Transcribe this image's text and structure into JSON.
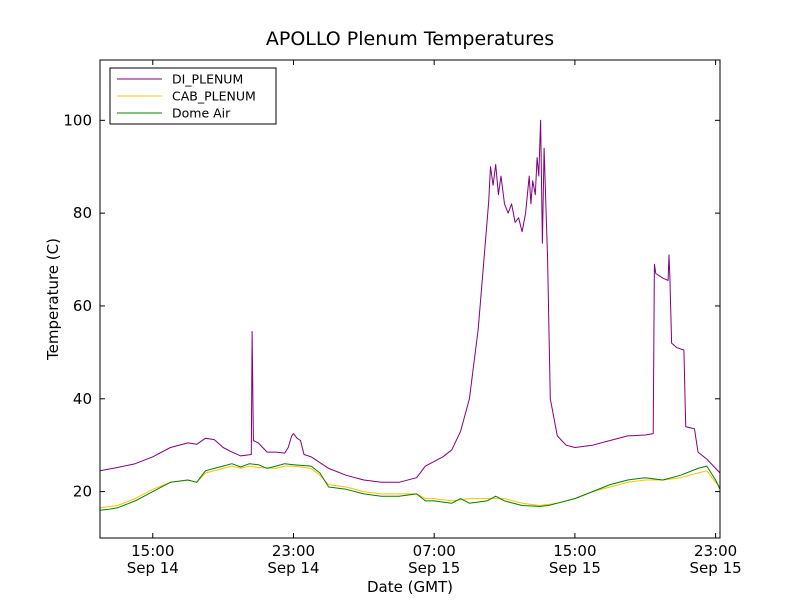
{
  "chart_data": {
    "type": "line",
    "title": "APOLLO Plenum Temperatures",
    "xlabel": "Date (GMT)",
    "ylabel": "Temperature (C)",
    "xlim": [
      12.0,
      47.25
    ],
    "ylim": [
      10,
      113
    ],
    "x_unit": "hours since Sep 14 00:00 GMT",
    "x_ticks": [
      {
        "x": 15,
        "time": "15:00",
        "date": "Sep 14"
      },
      {
        "x": 23,
        "time": "23:00",
        "date": "Sep 14"
      },
      {
        "x": 31,
        "time": "07:00",
        "date": "Sep 15"
      },
      {
        "x": 39,
        "time": "15:00",
        "date": "Sep 15"
      },
      {
        "x": 47,
        "time": "23:00",
        "date": "Sep 15"
      }
    ],
    "y_ticks": [
      20,
      40,
      60,
      80,
      100
    ],
    "legend_position": "top-left",
    "series": [
      {
        "name": "DI_PLENUM",
        "color": "#800080",
        "points": [
          [
            12.0,
            24.5
          ],
          [
            13.0,
            25.2
          ],
          [
            14.0,
            26.0
          ],
          [
            15.0,
            27.5
          ],
          [
            16.0,
            29.5
          ],
          [
            17.0,
            30.5
          ],
          [
            17.5,
            30.2
          ],
          [
            18.0,
            31.5
          ],
          [
            18.5,
            31.2
          ],
          [
            19.0,
            29.5
          ],
          [
            19.5,
            28.5
          ],
          [
            20.0,
            27.7
          ],
          [
            20.6,
            28.0
          ],
          [
            20.65,
            54.5
          ],
          [
            20.72,
            31.0
          ],
          [
            21.0,
            30.5
          ],
          [
            21.5,
            28.5
          ],
          [
            22.0,
            28.5
          ],
          [
            22.5,
            28.3
          ],
          [
            22.7,
            29.5
          ],
          [
            22.9,
            32.0
          ],
          [
            23.0,
            32.5
          ],
          [
            23.2,
            31.5
          ],
          [
            23.4,
            31.0
          ],
          [
            23.6,
            28.0
          ],
          [
            24.0,
            27.5
          ],
          [
            25.0,
            25.0
          ],
          [
            26.0,
            23.5
          ],
          [
            27.0,
            22.5
          ],
          [
            28.0,
            22.0
          ],
          [
            29.0,
            22.0
          ],
          [
            30.0,
            23.0
          ],
          [
            30.5,
            25.5
          ],
          [
            31.0,
            26.5
          ],
          [
            31.5,
            27.5
          ],
          [
            32.0,
            29.0
          ],
          [
            32.5,
            33.0
          ],
          [
            33.0,
            40.0
          ],
          [
            33.5,
            55.0
          ],
          [
            34.0,
            78.0
          ],
          [
            34.1,
            82.5
          ],
          [
            34.2,
            90.0
          ],
          [
            34.35,
            86.0
          ],
          [
            34.5,
            90.5
          ],
          [
            34.65,
            84.0
          ],
          [
            34.8,
            88.0
          ],
          [
            35.0,
            82.0
          ],
          [
            35.2,
            80.0
          ],
          [
            35.4,
            82.0
          ],
          [
            35.6,
            78.0
          ],
          [
            35.8,
            79.0
          ],
          [
            36.0,
            76.0
          ],
          [
            36.2,
            80.0
          ],
          [
            36.4,
            88.0
          ],
          [
            36.5,
            82.0
          ],
          [
            36.6,
            87.0
          ],
          [
            36.75,
            84.0
          ],
          [
            36.85,
            92.0
          ],
          [
            36.95,
            88.0
          ],
          [
            37.05,
            100.0
          ],
          [
            37.15,
            73.5
          ],
          [
            37.25,
            94.0
          ],
          [
            37.45,
            70.0
          ],
          [
            37.6,
            40.0
          ],
          [
            38.0,
            32.0
          ],
          [
            38.5,
            30.0
          ],
          [
            39.0,
            29.5
          ],
          [
            40.0,
            30.0
          ],
          [
            41.0,
            31.0
          ],
          [
            42.0,
            32.0
          ],
          [
            43.0,
            32.2
          ],
          [
            43.45,
            32.5
          ],
          [
            43.52,
            69.0
          ],
          [
            43.6,
            67.0
          ],
          [
            44.0,
            66.0
          ],
          [
            44.3,
            65.5
          ],
          [
            44.35,
            71.0
          ],
          [
            44.4,
            66.0
          ],
          [
            44.5,
            52.0
          ],
          [
            44.8,
            51.0
          ],
          [
            45.2,
            50.5
          ],
          [
            45.3,
            34.0
          ],
          [
            45.8,
            33.5
          ],
          [
            46.0,
            28.5
          ],
          [
            46.5,
            27.0
          ],
          [
            47.0,
            25.0
          ],
          [
            47.25,
            24.0
          ]
        ]
      },
      {
        "name": "CAB_PLENUM",
        "color": "#ffbf00",
        "points": [
          [
            12.0,
            16.5
          ],
          [
            13.0,
            17.0
          ],
          [
            14.0,
            18.5
          ],
          [
            15.0,
            20.5
          ],
          [
            16.0,
            22.0
          ],
          [
            17.0,
            22.5
          ],
          [
            17.5,
            22.0
          ],
          [
            18.0,
            24.0
          ],
          [
            19.0,
            25.0
          ],
          [
            19.5,
            25.5
          ],
          [
            20.0,
            25.0
          ],
          [
            20.5,
            25.5
          ],
          [
            21.0,
            25.2
          ],
          [
            22.0,
            25.0
          ],
          [
            22.5,
            25.5
          ],
          [
            23.0,
            25.5
          ],
          [
            24.0,
            25.0
          ],
          [
            24.5,
            23.5
          ],
          [
            25.0,
            21.5
          ],
          [
            26.0,
            21.0
          ],
          [
            27.0,
            20.0
          ],
          [
            28.0,
            19.5
          ],
          [
            29.0,
            19.5
          ],
          [
            30.0,
            19.5
          ],
          [
            30.5,
            18.5
          ],
          [
            31.0,
            18.5
          ],
          [
            32.0,
            18.0
          ],
          [
            33.0,
            18.5
          ],
          [
            34.0,
            18.5
          ],
          [
            35.0,
            18.5
          ],
          [
            36.0,
            17.5
          ],
          [
            37.0,
            17.0
          ],
          [
            38.0,
            17.5
          ],
          [
            39.0,
            18.5
          ],
          [
            40.0,
            20.0
          ],
          [
            41.0,
            21.0
          ],
          [
            42.0,
            22.0
          ],
          [
            43.0,
            22.5
          ],
          [
            44.0,
            22.5
          ],
          [
            45.0,
            23.0
          ],
          [
            46.0,
            24.0
          ],
          [
            46.5,
            24.5
          ],
          [
            47.0,
            22.0
          ],
          [
            47.25,
            21.0
          ]
        ]
      },
      {
        "name": "Dome Air",
        "color": "#008000",
        "points": [
          [
            12.0,
            16.0
          ],
          [
            12.5,
            16.2
          ],
          [
            13.0,
            16.5
          ],
          [
            14.0,
            18.0
          ],
          [
            15.0,
            20.0
          ],
          [
            16.0,
            22.0
          ],
          [
            17.0,
            22.5
          ],
          [
            17.5,
            22.0
          ],
          [
            18.0,
            24.5
          ],
          [
            18.5,
            25.0
          ],
          [
            19.0,
            25.5
          ],
          [
            19.5,
            26.0
          ],
          [
            20.0,
            25.3
          ],
          [
            20.5,
            26.0
          ],
          [
            21.0,
            25.8
          ],
          [
            21.5,
            25.0
          ],
          [
            22.0,
            25.5
          ],
          [
            22.5,
            26.0
          ],
          [
            23.0,
            25.8
          ],
          [
            24.0,
            25.5
          ],
          [
            24.5,
            24.0
          ],
          [
            25.0,
            21.0
          ],
          [
            26.0,
            20.5
          ],
          [
            27.0,
            19.5
          ],
          [
            28.0,
            19.0
          ],
          [
            29.0,
            19.0
          ],
          [
            30.0,
            19.5
          ],
          [
            30.5,
            18.0
          ],
          [
            31.0,
            18.0
          ],
          [
            32.0,
            17.5
          ],
          [
            32.5,
            18.5
          ],
          [
            33.0,
            17.5
          ],
          [
            34.0,
            18.0
          ],
          [
            34.5,
            19.0
          ],
          [
            35.0,
            18.0
          ],
          [
            36.0,
            17.0
          ],
          [
            37.0,
            16.8
          ],
          [
            37.5,
            17.0
          ],
          [
            38.0,
            17.5
          ],
          [
            39.0,
            18.5
          ],
          [
            40.0,
            20.0
          ],
          [
            41.0,
            21.5
          ],
          [
            42.0,
            22.5
          ],
          [
            43.0,
            23.0
          ],
          [
            44.0,
            22.5
          ],
          [
            45.0,
            23.5
          ],
          [
            46.0,
            25.0
          ],
          [
            46.5,
            25.5
          ],
          [
            47.0,
            22.5
          ],
          [
            47.25,
            20.5
          ]
        ]
      }
    ]
  }
}
